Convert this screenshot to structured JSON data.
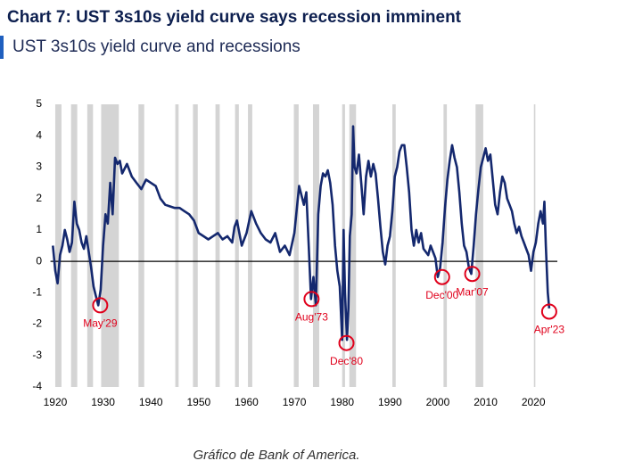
{
  "caption": "Gráfico de Bank of America.",
  "chart_data": {
    "type": "line",
    "title": "Chart 7: UST 3s10s yield curve says recession imminent",
    "subtitle": "UST 3s10s yield curve and recessions",
    "color": "#14286e",
    "recession_color": "#d4d4d4",
    "xlim": [
      1919,
      2025
    ],
    "xticks": [
      1920,
      1930,
      1940,
      1950,
      1960,
      1970,
      1980,
      1990,
      2000,
      2010,
      2020
    ],
    "ylim": [
      -4,
      5
    ],
    "yticks": [
      -4,
      -3,
      -2,
      -1,
      0,
      1,
      2,
      3,
      4,
      5
    ],
    "recessions": [
      [
        1920,
        1921.3
      ],
      [
        1923.3,
        1924.6
      ],
      [
        1926.7,
        1927.9
      ],
      [
        1929.6,
        1933.3
      ],
      [
        1937.4,
        1938.6
      ],
      [
        1945.1,
        1945.8
      ],
      [
        1948.8,
        1949.8
      ],
      [
        1953.5,
        1954.4
      ],
      [
        1957.6,
        1958.4
      ],
      [
        1960.3,
        1961.2
      ],
      [
        1969.9,
        1970.9
      ],
      [
        1973.9,
        1975.2
      ],
      [
        1980,
        1980.6
      ],
      [
        1981.5,
        1982.9
      ],
      [
        1990.5,
        1991.2
      ],
      [
        2001.2,
        2001.9
      ],
      [
        2007.9,
        2009.5
      ],
      [
        2020.1,
        2020.4
      ]
    ],
    "x": [
      1919.5,
      1920,
      1920.5,
      1921,
      1921.5,
      1922,
      1922.5,
      1923,
      1923.5,
      1924,
      1924.5,
      1925,
      1925.5,
      1926,
      1926.5,
      1927,
      1927.5,
      1928,
      1928.5,
      1929,
      1929.5,
      1930,
      1930.5,
      1931,
      1931.5,
      1932,
      1932.5,
      1933,
      1933.5,
      1934,
      1935,
      1936,
      1937,
      1938,
      1939,
      1940,
      1941,
      1942,
      1943,
      1944,
      1945,
      1946,
      1947,
      1948,
      1949,
      1950,
      1951,
      1952,
      1953,
      1954,
      1955,
      1956,
      1957,
      1957.5,
      1958,
      1959,
      1960,
      1961,
      1962,
      1963,
      1964,
      1965,
      1966,
      1967,
      1968,
      1969,
      1970,
      1971,
      1972,
      1972.5,
      1973,
      1973.5,
      1974,
      1974.5,
      1975,
      1975.5,
      1976,
      1976.5,
      1977,
      1977.5,
      1978,
      1978.5,
      1979,
      1979.5,
      1980,
      1980.3,
      1980.6,
      1981,
      1981.3,
      1981.6,
      1982,
      1982.3,
      1982.6,
      1983,
      1983.5,
      1984,
      1984.5,
      1985,
      1985.5,
      1986,
      1986.5,
      1987,
      1987.5,
      1988,
      1988.5,
      1989,
      1989.5,
      1990,
      1990.5,
      1991,
      1991.5,
      1992,
      1992.5,
      1993,
      1993.5,
      1994,
      1994.5,
      1995,
      1995.5,
      1996,
      1996.5,
      1997,
      1997.5,
      1998,
      1998.5,
      1999,
      1999.5,
      2000,
      2000.5,
      2001,
      2001.5,
      2002,
      2002.5,
      2003,
      2003.5,
      2004,
      2004.5,
      2005,
      2005.5,
      2006,
      2006.5,
      2007,
      2007.5,
      2008,
      2008.5,
      2009,
      2009.5,
      2010,
      2010.5,
      2011,
      2011.5,
      2012,
      2012.5,
      2013,
      2013.5,
      2014,
      2014.5,
      2015,
      2015.5,
      2016,
      2016.5,
      2017,
      2017.5,
      2018,
      2018.5,
      2019,
      2019.5,
      2020,
      2020.5,
      2021,
      2021.5,
      2022,
      2022.3,
      2022.6,
      2023,
      2023.3
    ],
    "values": [
      0.5,
      -0.3,
      -0.7,
      0.2,
      0.5,
      1.0,
      0.7,
      0.3,
      0.6,
      1.9,
      1.2,
      1.0,
      0.6,
      0.4,
      0.8,
      0.3,
      -0.2,
      -0.8,
      -1.1,
      -1.4,
      -0.9,
      0.5,
      1.5,
      1.2,
      2.5,
      1.5,
      3.3,
      3.1,
      3.2,
      2.8,
      3.1,
      2.7,
      2.5,
      2.3,
      2.6,
      2.5,
      2.4,
      2.0,
      1.8,
      1.75,
      1.7,
      1.7,
      1.6,
      1.5,
      1.3,
      0.9,
      0.8,
      0.7,
      0.8,
      0.9,
      0.7,
      0.8,
      0.6,
      1.1,
      1.3,
      0.5,
      0.9,
      1.6,
      1.2,
      0.9,
      0.7,
      0.6,
      0.9,
      0.3,
      0.5,
      0.2,
      0.9,
      2.4,
      1.8,
      2.2,
      0.5,
      -1.2,
      -0.5,
      -1.4,
      1.5,
      2.4,
      2.8,
      2.7,
      2.9,
      2.5,
      1.8,
      0.5,
      -0.3,
      -0.8,
      -2.5,
      1.0,
      -1.0,
      -2.5,
      -1.5,
      0.8,
      1.5,
      4.3,
      3.0,
      2.8,
      3.4,
      2.5,
      1.5,
      2.7,
      3.2,
      2.7,
      3.1,
      2.8,
      2.0,
      1.1,
      0.3,
      -0.1,
      0.5,
      0.8,
      1.6,
      2.7,
      3.0,
      3.5,
      3.7,
      3.7,
      3.0,
      2.2,
      1.0,
      0.5,
      1.0,
      0.6,
      0.9,
      0.4,
      0.3,
      0.2,
      0.5,
      0.3,
      0.1,
      -0.5,
      -0.2,
      0.6,
      1.7,
      2.6,
      3.2,
      3.7,
      3.3,
      3.0,
      2.2,
      1.2,
      0.5,
      0.3,
      -0.2,
      -0.4,
      0.5,
      1.5,
      2.3,
      3.0,
      3.3,
      3.6,
      3.2,
      3.4,
      2.6,
      1.8,
      1.5,
      2.2,
      2.7,
      2.5,
      2.0,
      1.8,
      1.6,
      1.2,
      0.9,
      1.1,
      0.8,
      0.6,
      0.4,
      0.2,
      -0.3,
      0.3,
      0.6,
      1.2,
      1.6,
      1.2,
      1.9,
      0.5,
      -1.0,
      -1.5
    ],
    "annotations": [
      {
        "label": "May'29",
        "x": 1929.4,
        "y": -1.4
      },
      {
        "label": "Aug'73",
        "x": 1973.6,
        "y": -1.2
      },
      {
        "label": "Dec'80",
        "x": 1980.9,
        "y": -2.6
      },
      {
        "label": "Dec'00",
        "x": 2000.9,
        "y": -0.5
      },
      {
        "label": "Mar'07",
        "x": 2007.2,
        "y": -0.4
      },
      {
        "label": "Apr'23",
        "x": 2023.3,
        "y": -1.6
      }
    ]
  }
}
